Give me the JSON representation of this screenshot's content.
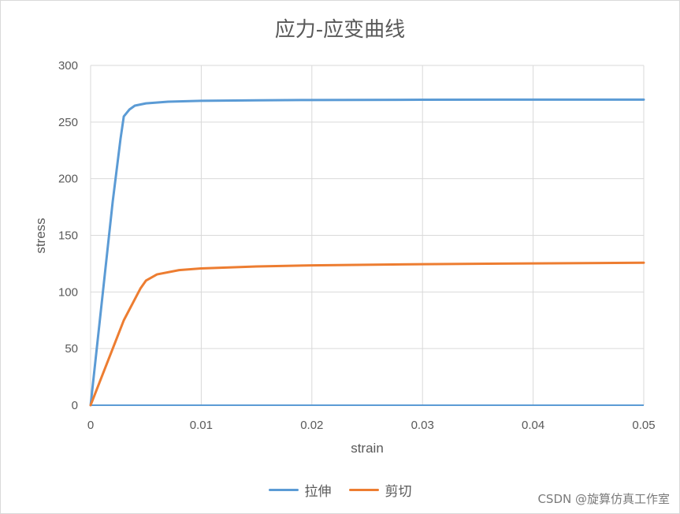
{
  "chart_data": {
    "type": "line",
    "title": "应力-应变曲线",
    "xlabel": "strain",
    "ylabel": "stress",
    "xlim": [
      0,
      0.05
    ],
    "ylim": [
      0,
      300
    ],
    "xticks": [
      0,
      0.01,
      0.02,
      0.03,
      0.04,
      0.05
    ],
    "xtick_labels": [
      "0",
      "0.01",
      "0.02",
      "0.03",
      "0.04",
      "0.05"
    ],
    "yticks": [
      0,
      50,
      100,
      150,
      200,
      250,
      300
    ],
    "ytick_labels": [
      "0",
      "50",
      "100",
      "150",
      "200",
      "250",
      "300"
    ],
    "grid": true,
    "legend_position": "bottom",
    "series": [
      {
        "name": "拉伸",
        "color": "#5b9bd5",
        "points": [
          [
            0,
            0
          ],
          [
            0.001,
            90
          ],
          [
            0.002,
            180
          ],
          [
            0.0027,
            235
          ],
          [
            0.003,
            255
          ],
          [
            0.0035,
            261
          ],
          [
            0.004,
            264.5
          ],
          [
            0.005,
            266.5
          ],
          [
            0.007,
            268
          ],
          [
            0.01,
            268.8
          ],
          [
            0.015,
            269.2
          ],
          [
            0.02,
            269.5
          ],
          [
            0.03,
            269.7
          ],
          [
            0.04,
            269.8
          ],
          [
            0.05,
            269.8
          ]
        ]
      },
      {
        "name": "剪切",
        "color": "#ed7d31",
        "points": [
          [
            0,
            0
          ],
          [
            0.001,
            25
          ],
          [
            0.002,
            50
          ],
          [
            0.003,
            75
          ],
          [
            0.0045,
            103
          ],
          [
            0.005,
            110
          ],
          [
            0.006,
            115.5
          ],
          [
            0.008,
            119.3
          ],
          [
            0.01,
            120.8
          ],
          [
            0.015,
            122.5
          ],
          [
            0.02,
            123.5
          ],
          [
            0.03,
            124.5
          ],
          [
            0.04,
            125.2
          ],
          [
            0.05,
            125.8
          ]
        ]
      }
    ]
  },
  "watermark": "CSDN @旋算仿真工作室"
}
